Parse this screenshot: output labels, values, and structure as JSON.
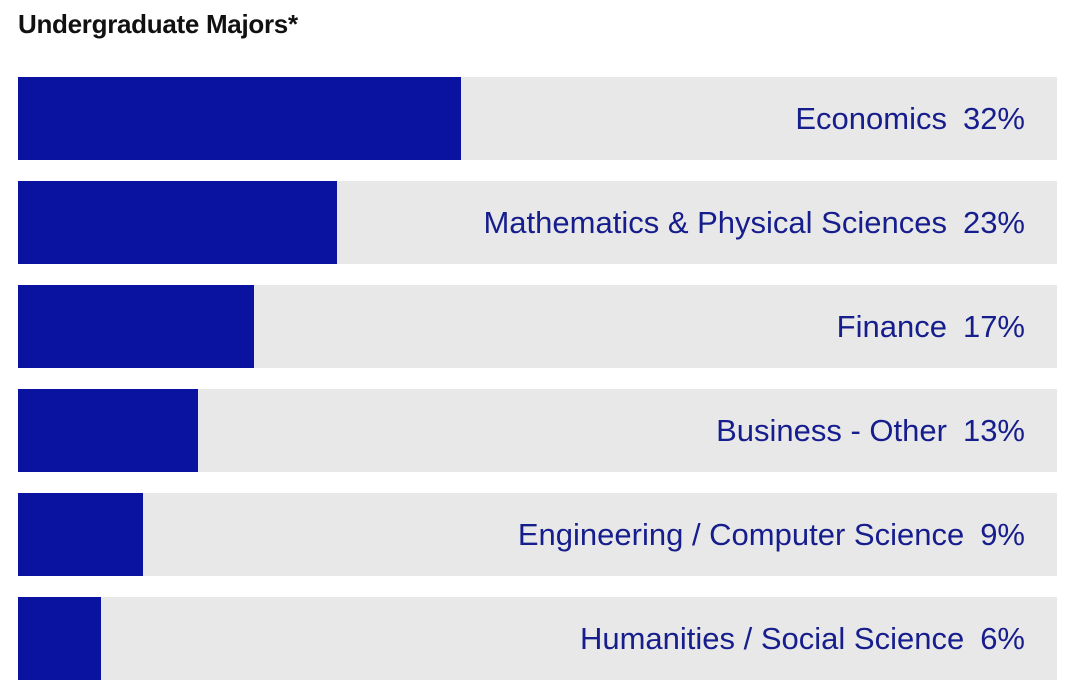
{
  "title": "Undergraduate Majors*",
  "colors": {
    "bar": "#0a12a0",
    "track": "#e8e8e8",
    "label": "#161d8c"
  },
  "chart_data": {
    "type": "bar",
    "orientation": "horizontal",
    "title": "Undergraduate Majors*",
    "xlim": [
      0,
      75
    ],
    "categories": [
      "Economics",
      "Mathematics & Physical Sciences",
      "Finance",
      "Business - Other",
      "Engineering / Computer Science",
      "Humanities / Social Science"
    ],
    "values": [
      32,
      23,
      17,
      13,
      9,
      6
    ],
    "value_labels": [
      "32%",
      "23%",
      "17%",
      "13%",
      "9%",
      "6%"
    ]
  }
}
